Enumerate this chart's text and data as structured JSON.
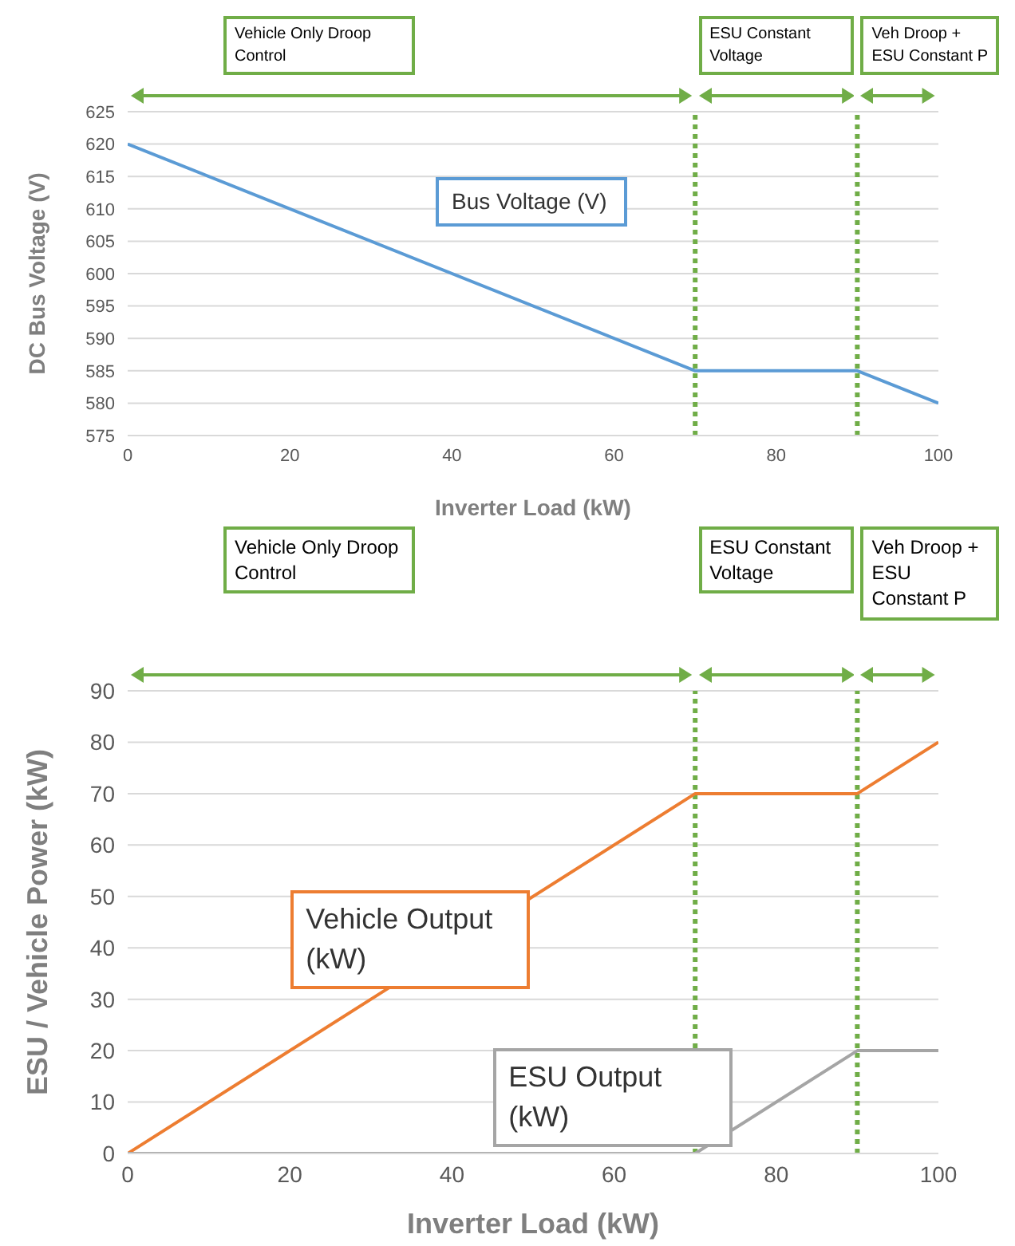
{
  "chart_data": [
    {
      "type": "line",
      "xlabel": "Inverter Load (kW)",
      "ylabel": "DC Bus Voltage (V)",
      "x": [
        0,
        70,
        90,
        100
      ],
      "series": [
        {
          "name": "Bus Voltage (V)",
          "color": "#5b9bd5",
          "values": [
            620,
            585,
            585,
            580
          ]
        }
      ],
      "xlim": [
        0,
        100
      ],
      "xticks": [
        0,
        20,
        40,
        60,
        80,
        100
      ],
      "ylim": [
        575,
        625
      ],
      "yticks": [
        575,
        580,
        585,
        590,
        595,
        600,
        605,
        610,
        615,
        620,
        625
      ],
      "grid": "y",
      "line_style": "solid",
      "ref_lines": [
        {
          "axis": "x",
          "value": 70,
          "color": "#70ad47",
          "line_style": "dotted"
        },
        {
          "axis": "x",
          "value": 90,
          "color": "#70ad47",
          "line_style": "dotted"
        }
      ],
      "annotations": [
        "Vehicle Only Droop Control",
        "ESU Constant Voltage",
        "Veh Droop + ESU Constant P"
      ]
    },
    {
      "type": "line",
      "xlabel": "Inverter Load (kW)",
      "ylabel": "ESU / Vehicle Power (kW)",
      "x": [
        0,
        70,
        90,
        100
      ],
      "series": [
        {
          "name": "Vehicle Output (kW)",
          "color": "#ed7d31",
          "values": [
            0,
            70,
            70,
            80
          ]
        },
        {
          "name": "ESU Output (kW)",
          "color": "#a5a5a5",
          "values": [
            0,
            0,
            20,
            20
          ]
        }
      ],
      "xlim": [
        0,
        100
      ],
      "xticks": [
        0,
        20,
        40,
        60,
        80,
        100
      ],
      "ylim": [
        0,
        90
      ],
      "yticks": [
        0,
        10,
        20,
        30,
        40,
        50,
        60,
        70,
        80,
        90
      ],
      "grid": "y",
      "line_style": "solid",
      "ref_lines": [
        {
          "axis": "x",
          "value": 70,
          "color": "#70ad47",
          "line_style": "dotted"
        },
        {
          "axis": "x",
          "value": 90,
          "color": "#70ad47",
          "line_style": "dotted"
        }
      ],
      "annotations": [
        "Vehicle Only Droop Control",
        "ESU Constant Voltage",
        "Veh Droop + ESU Constant P"
      ]
    }
  ]
}
